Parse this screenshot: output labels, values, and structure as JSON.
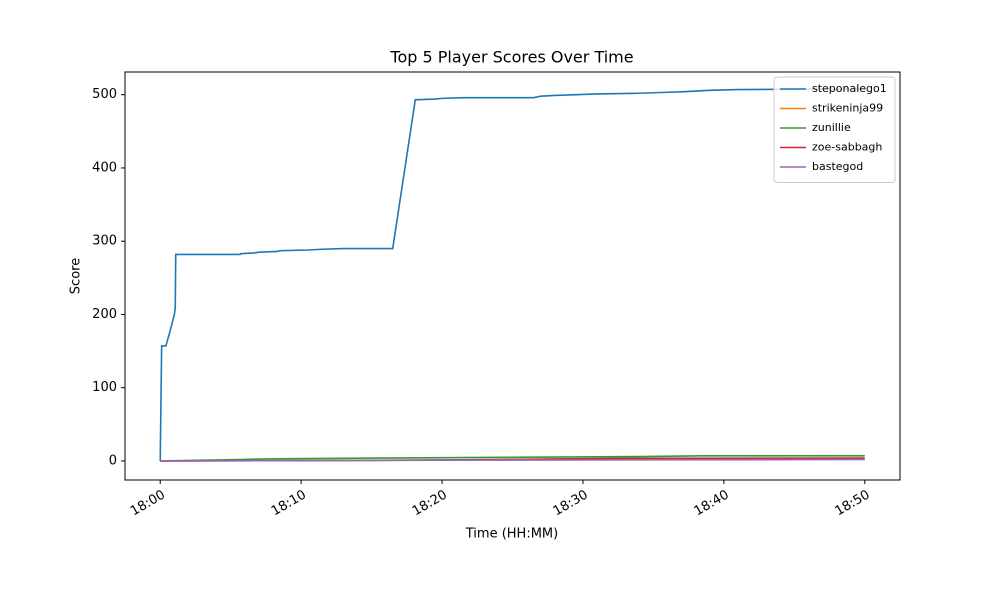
{
  "chart_data": {
    "type": "line",
    "title": "Top 5 Player Scores Over Time",
    "x_label": "Time (HH:MM)",
    "y_label": "Score",
    "xlim": [
      "17:57:30",
      "18:52:30"
    ],
    "xticks": [
      "18:00",
      "18:10",
      "18:20",
      "18:30",
      "18:40",
      "18:50"
    ],
    "ylim": [
      -26,
      531
    ],
    "yticks": [
      0,
      100,
      200,
      300,
      400,
      500
    ],
    "legend": "upper right",
    "series": [
      {
        "name": "steponalego1",
        "color": "#1f77b4",
        "x": [
          "18:00:00",
          "18:00:06",
          "18:00:24",
          "18:00:40",
          "18:01:00",
          "18:01:04",
          "18:01:06",
          "18:05:40",
          "18:05:42",
          "18:06:40",
          "18:07:00",
          "18:08:20",
          "18:08:30",
          "18:10:30",
          "18:11:30",
          "18:13:00",
          "18:16:30",
          "18:18:06",
          "18:19:30",
          "18:20:00",
          "18:21:30",
          "18:26:30",
          "18:27:00",
          "18:28:00",
          "18:29:30",
          "18:31:00",
          "18:34:00",
          "18:35:30",
          "18:37:00",
          "18:38:00",
          "18:39:00",
          "18:41:00",
          "18:50:00"
        ],
        "values": [
          0,
          157,
          157,
          175,
          200,
          208,
          282,
          282,
          283,
          284,
          285,
          286,
          287,
          288,
          289,
          290,
          290,
          493,
          494,
          495,
          496,
          496,
          498,
          499,
          500,
          501,
          502,
          503,
          504,
          505,
          506,
          507,
          508
        ]
      },
      {
        "name": "strikeninja99",
        "color": "#ff7f0e",
        "x": [
          "18:00:00",
          "18:17:30",
          "18:32:00",
          "18:50:00"
        ],
        "values": [
          0,
          1,
          3,
          3
        ]
      },
      {
        "name": "zunillie",
        "color": "#2ca02c",
        "x": [
          "18:00:00",
          "18:05:40",
          "18:08:00",
          "18:15:30",
          "18:24:30",
          "18:34:00",
          "18:38:30",
          "18:50:00"
        ],
        "values": [
          0,
          2,
          3,
          4,
          5,
          6,
          7,
          7
        ]
      },
      {
        "name": "zoe-sabbagh",
        "color": "#d62728",
        "x": [
          "18:00:00",
          "18:17:30",
          "18:24:00",
          "18:32:00",
          "18:50:00"
        ],
        "values": [
          0,
          1,
          2,
          3.5,
          4
        ]
      },
      {
        "name": "bastegod",
        "color": "#9467bd",
        "x": [
          "18:00:00",
          "18:20:00",
          "18:50:00"
        ],
        "values": [
          0,
          1,
          2
        ]
      }
    ]
  }
}
